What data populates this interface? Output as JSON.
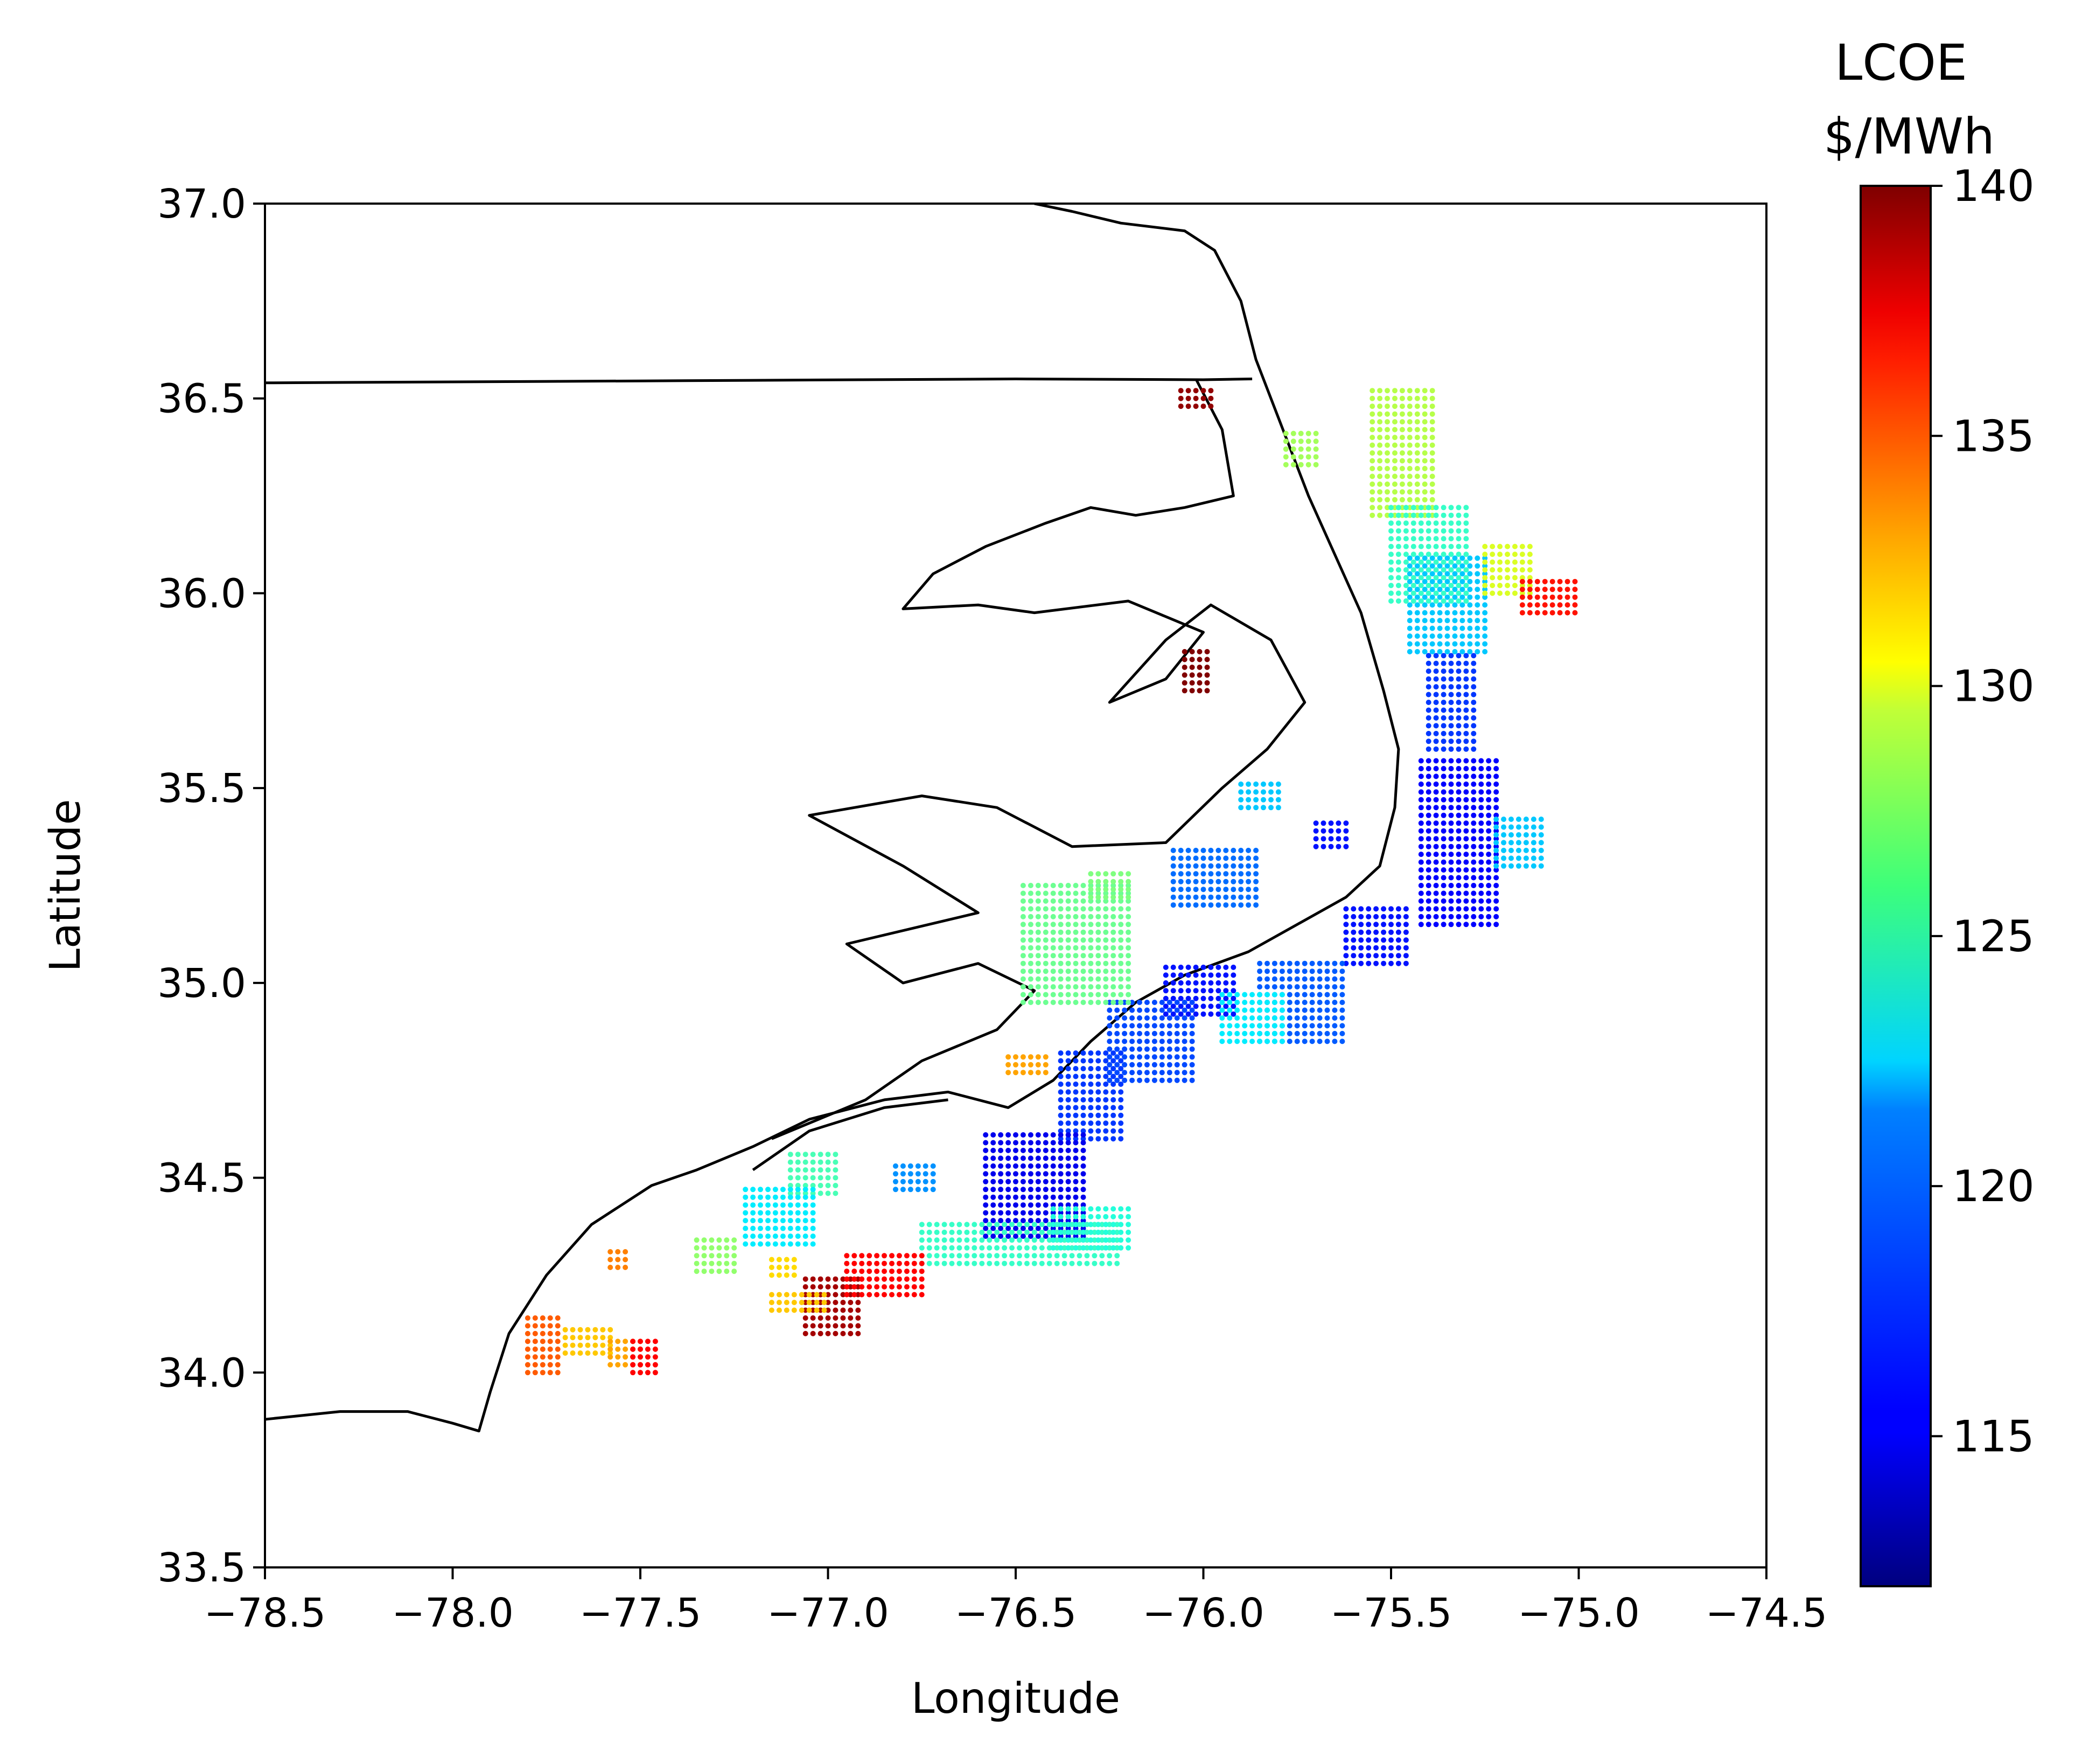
{
  "chart_data": {
    "type": "scatter",
    "title": "",
    "xlabel": "Longitude",
    "ylabel": "Latitude",
    "xlim": [
      -78.5,
      -74.5
    ],
    "ylim": [
      33.5,
      37.0
    ],
    "x_ticks": [
      "−78.5",
      "−78.0",
      "−77.5",
      "−77.0",
      "−76.5",
      "−76.0",
      "−75.5",
      "−75.0",
      "−74.5"
    ],
    "x_tick_values": [
      -78.5,
      -78.0,
      -77.5,
      -77.0,
      -76.5,
      -76.0,
      -75.5,
      -75.0,
      -74.5
    ],
    "y_ticks": [
      "33.5",
      "34.0",
      "34.5",
      "35.0",
      "35.5",
      "36.0",
      "36.5",
      "37.0"
    ],
    "y_tick_values": [
      33.5,
      34.0,
      34.5,
      35.0,
      35.5,
      36.0,
      36.5,
      37.0
    ],
    "grid": false,
    "colormap": "jet",
    "colorbar": {
      "title_line1": "LCOE",
      "title_line2": "$/MWh",
      "min": 112,
      "max": 140,
      "ticks": [
        "115",
        "120",
        "125",
        "130",
        "135",
        "140"
      ],
      "tick_values": [
        115,
        120,
        125,
        130,
        135,
        140
      ]
    },
    "basemap": {
      "state_border": [
        [
          -78.5,
          36.54
        ],
        [
          -77.5,
          36.545
        ],
        [
          -76.5,
          36.55
        ],
        [
          -76.0,
          36.548
        ],
        [
          -75.87,
          36.55
        ]
      ],
      "coastline_main": [
        [
          -78.5,
          33.88
        ],
        [
          -78.3,
          33.9
        ],
        [
          -78.12,
          33.9
        ],
        [
          -78.0,
          33.87
        ],
        [
          -77.93,
          33.85
        ],
        [
          -77.9,
          33.95
        ],
        [
          -77.85,
          34.1
        ],
        [
          -77.75,
          34.25
        ],
        [
          -77.63,
          34.38
        ],
        [
          -77.47,
          34.48
        ],
        [
          -77.35,
          34.52
        ],
        [
          -77.2,
          34.58
        ],
        [
          -77.05,
          34.65
        ],
        [
          -76.85,
          34.7
        ],
        [
          -76.68,
          34.72
        ],
        [
          -76.52,
          34.68
        ],
        [
          -76.4,
          34.75
        ],
        [
          -76.3,
          34.85
        ],
        [
          -76.18,
          34.95
        ],
        [
          -76.05,
          35.02
        ],
        [
          -75.88,
          35.08
        ],
        [
          -75.75,
          35.15
        ],
        [
          -75.62,
          35.22
        ],
        [
          -75.53,
          35.3
        ],
        [
          -75.49,
          35.45
        ],
        [
          -75.48,
          35.6
        ],
        [
          -75.52,
          35.75
        ],
        [
          -75.58,
          35.95
        ],
        [
          -75.65,
          36.1
        ],
        [
          -75.72,
          36.25
        ],
        [
          -75.8,
          36.45
        ],
        [
          -75.86,
          36.6
        ],
        [
          -75.9,
          36.75
        ],
        [
          -75.97,
          36.88
        ],
        [
          -76.05,
          36.93
        ],
        [
          -76.22,
          36.95
        ],
        [
          -76.35,
          36.98
        ],
        [
          -76.45,
          37.0
        ]
      ],
      "sound_shoreline": [
        [
          -77.15,
          34.6
        ],
        [
          -76.9,
          34.7
        ],
        [
          -76.75,
          34.8
        ],
        [
          -76.55,
          34.88
        ],
        [
          -76.45,
          34.98
        ],
        [
          -76.6,
          35.05
        ],
        [
          -76.8,
          35.0
        ],
        [
          -76.95,
          35.1
        ],
        [
          -76.6,
          35.18
        ],
        [
          -76.8,
          35.3
        ],
        [
          -77.05,
          35.43
        ],
        [
          -76.75,
          35.48
        ],
        [
          -76.55,
          35.45
        ],
        [
          -76.35,
          35.35
        ],
        [
          -76.1,
          35.36
        ],
        [
          -75.95,
          35.5
        ],
        [
          -75.83,
          35.6
        ],
        [
          -75.73,
          35.72
        ],
        [
          -75.82,
          35.88
        ],
        [
          -75.98,
          35.97
        ],
        [
          -76.1,
          35.88
        ],
        [
          -76.25,
          35.72
        ],
        [
          -76.1,
          35.78
        ],
        [
          -76.0,
          35.9
        ],
        [
          -76.2,
          35.98
        ],
        [
          -76.45,
          35.95
        ],
        [
          -76.6,
          35.97
        ],
        [
          -76.8,
          35.96
        ],
        [
          -76.72,
          36.05
        ],
        [
          -76.58,
          36.12
        ],
        [
          -76.42,
          36.18
        ],
        [
          -76.3,
          36.22
        ],
        [
          -76.18,
          36.2
        ],
        [
          -76.05,
          36.22
        ],
        [
          -75.92,
          36.25
        ],
        [
          -75.95,
          36.42
        ],
        [
          -76.02,
          36.55
        ]
      ],
      "barrier_islands": [
        [
          -77.2,
          34.52
        ],
        [
          -77.05,
          34.62
        ],
        [
          -76.85,
          34.68
        ],
        [
          -76.68,
          34.7
        ]
      ]
    },
    "clusters": [
      {
        "lon": [
          -75.55,
          -75.38
        ],
        "lat": [
          36.2,
          36.52
        ],
        "value": 127.5
      },
      {
        "lon": [
          -75.5,
          -75.3
        ],
        "lat": [
          35.98,
          36.22
        ],
        "value": 124
      },
      {
        "lon": [
          -75.45,
          -75.25
        ],
        "lat": [
          35.85,
          36.1
        ],
        "value": 121
      },
      {
        "lon": [
          -75.25,
          -75.12
        ],
        "lat": [
          36.0,
          36.12
        ],
        "value": 128.5
      },
      {
        "lon": [
          -75.78,
          -75.7
        ],
        "lat": [
          36.33,
          36.42
        ],
        "value": 127
      },
      {
        "lon": [
          -75.4,
          -75.28
        ],
        "lat": [
          35.6,
          35.85
        ],
        "value": 117
      },
      {
        "lon": [
          -75.42,
          -75.22
        ],
        "lat": [
          35.15,
          35.58
        ],
        "value": 115.5
      },
      {
        "lon": [
          -75.22,
          -75.1
        ],
        "lat": [
          35.3,
          35.42
        ],
        "value": 121
      },
      {
        "lon": [
          -75.62,
          -75.45
        ],
        "lat": [
          35.05,
          35.2
        ],
        "value": 116
      },
      {
        "lon": [
          -75.85,
          -75.62
        ],
        "lat": [
          34.85,
          35.05
        ],
        "value": 118
      },
      {
        "lon": [
          -75.95,
          -75.78
        ],
        "lat": [
          34.85,
          34.98
        ],
        "value": 122
      },
      {
        "lon": [
          -76.1,
          -75.92
        ],
        "lat": [
          34.92,
          35.05
        ],
        "value": 116
      },
      {
        "lon": [
          -76.08,
          -75.85
        ],
        "lat": [
          35.2,
          35.35
        ],
        "value": 118.5
      },
      {
        "lon": [
          -75.9,
          -75.8
        ],
        "lat": [
          35.45,
          35.52
        ],
        "value": 121
      },
      {
        "lon": [
          -75.7,
          -75.62
        ],
        "lat": [
          35.35,
          35.42
        ],
        "value": 116
      },
      {
        "lon": [
          -76.25,
          -76.02
        ],
        "lat": [
          34.75,
          34.95
        ],
        "value": 117.5
      },
      {
        "lon": [
          -76.38,
          -76.22
        ],
        "lat": [
          34.6,
          34.82
        ],
        "value": 117
      },
      {
        "lon": [
          -76.58,
          -76.32
        ],
        "lat": [
          34.35,
          34.62
        ],
        "value": 115
      },
      {
        "lon": [
          -76.75,
          -76.22
        ],
        "lat": [
          34.28,
          34.38
        ],
        "value": 124
      },
      {
        "lon": [
          -76.4,
          -76.2
        ],
        "lat": [
          34.32,
          34.42
        ],
        "value": 123.5
      },
      {
        "lon": [
          -76.48,
          -76.2
        ],
        "lat": [
          34.95,
          35.25
        ],
        "value": 125.5
      },
      {
        "lon": [
          -76.3,
          -76.2
        ],
        "lat": [
          35.22,
          35.28
        ],
        "value": 126
      },
      {
        "lon": [
          -77.1,
          -76.98
        ],
        "lat": [
          34.46,
          34.56
        ],
        "value": 124.5
      },
      {
        "lon": [
          -77.22,
          -77.03
        ],
        "lat": [
          34.33,
          34.48
        ],
        "value": 122
      },
      {
        "lon": [
          -76.82,
          -76.72
        ],
        "lat": [
          34.47,
          34.53
        ],
        "value": 119.5
      },
      {
        "lon": [
          -77.35,
          -77.25
        ],
        "lat": [
          34.26,
          34.34
        ],
        "value": 126.5
      },
      {
        "lon": [
          -77.15,
          -77.08
        ],
        "lat": [
          34.25,
          34.3
        ],
        "value": 130.5
      },
      {
        "lon": [
          -77.06,
          -76.92
        ],
        "lat": [
          34.1,
          34.24
        ],
        "value": 139
      },
      {
        "lon": [
          -76.95,
          -76.75
        ],
        "lat": [
          34.2,
          34.3
        ],
        "value": 136.5
      },
      {
        "lon": [
          -77.15,
          -77.0
        ],
        "lat": [
          34.16,
          34.2
        ],
        "value": 131
      },
      {
        "lon": [
          -77.58,
          -77.53
        ],
        "lat": [
          34.27,
          34.32
        ],
        "value": 133
      },
      {
        "lon": [
          -77.8,
          -77.72
        ],
        "lat": [
          34.0,
          34.15
        ],
        "value": 134
      },
      {
        "lon": [
          -77.7,
          -77.58
        ],
        "lat": [
          34.05,
          34.12
        ],
        "value": 131
      },
      {
        "lon": [
          -77.58,
          -77.5
        ],
        "lat": [
          34.02,
          34.08
        ],
        "value": 132
      },
      {
        "lon": [
          -77.52,
          -77.45
        ],
        "lat": [
          34.0,
          34.08
        ],
        "value": 136.5
      },
      {
        "lon": [
          -76.05,
          -75.98
        ],
        "lat": [
          35.75,
          35.86
        ],
        "value": 140
      },
      {
        "lon": [
          -76.06,
          -75.98
        ],
        "lat": [
          36.48,
          36.53
        ],
        "value": 139.5
      },
      {
        "lon": [
          -75.15,
          -75.0
        ],
        "lat": [
          35.95,
          36.04
        ],
        "value": 136
      },
      {
        "lon": [
          -76.52,
          -76.42
        ],
        "lat": [
          34.77,
          34.82
        ],
        "value": 132
      }
    ]
  }
}
